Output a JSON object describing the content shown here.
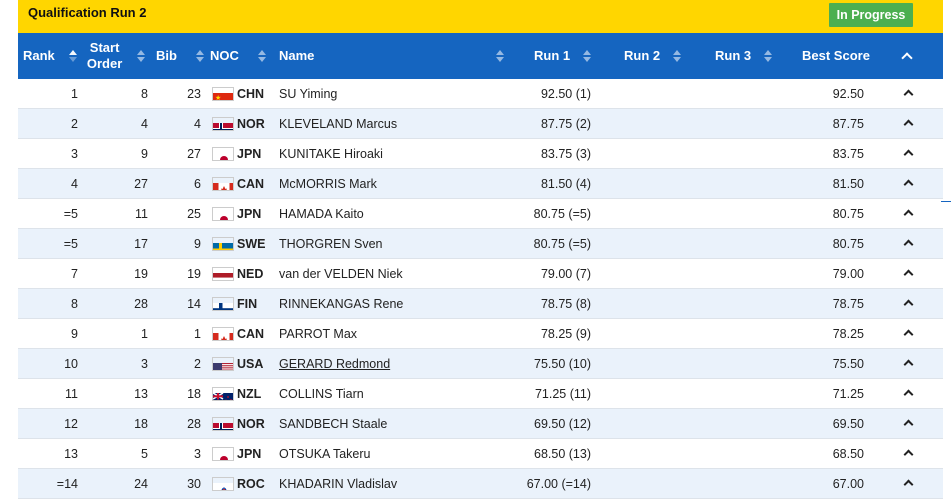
{
  "header": {
    "title": "Qualification Run 2",
    "status": "In Progress"
  },
  "columns": {
    "rank": "Rank",
    "start_order": "Start Order",
    "bib": "Bib",
    "noc": "NOC",
    "name": "Name",
    "run1": "Run 1",
    "run2": "Run 2",
    "run3": "Run 3",
    "best": "Best Score"
  },
  "colors": {
    "topbar": "#ffd600",
    "header": "#1565c0",
    "status": "#4caf50",
    "alt_row": "#eaf2fb"
  },
  "rows": [
    {
      "rank": "1",
      "start": "8",
      "bib": "23",
      "noc": "CHN",
      "flag": "chn-flag-icon",
      "name": "SU Yiming",
      "run1": "92.50 (1)",
      "run2": "",
      "run3": "",
      "best": "92.50"
    },
    {
      "rank": "2",
      "start": "4",
      "bib": "4",
      "noc": "NOR",
      "flag": "nor-flag-icon",
      "name": "KLEVELAND Marcus",
      "run1": "87.75 (2)",
      "run2": "",
      "run3": "",
      "best": "87.75"
    },
    {
      "rank": "3",
      "start": "9",
      "bib": "27",
      "noc": "JPN",
      "flag": "jpn-flag-icon",
      "name": "KUNITAKE Hiroaki",
      "run1": "83.75 (3)",
      "run2": "",
      "run3": "",
      "best": "83.75"
    },
    {
      "rank": "4",
      "start": "27",
      "bib": "6",
      "noc": "CAN",
      "flag": "can-flag-icon",
      "name": "McMORRIS Mark",
      "run1": "81.50 (4)",
      "run2": "",
      "run3": "",
      "best": "81.50"
    },
    {
      "rank": "=5",
      "start": "11",
      "bib": "25",
      "noc": "JPN",
      "flag": "jpn-flag-icon",
      "name": "HAMADA Kaito",
      "run1": "80.75 (=5)",
      "run2": "",
      "run3": "",
      "best": "80.75"
    },
    {
      "rank": "=5",
      "start": "17",
      "bib": "9",
      "noc": "SWE",
      "flag": "swe-flag-icon",
      "name": "THORGREN Sven",
      "run1": "80.75 (=5)",
      "run2": "",
      "run3": "",
      "best": "80.75"
    },
    {
      "rank": "7",
      "start": "19",
      "bib": "19",
      "noc": "NED",
      "flag": "ned-flag-icon",
      "name": "van der VELDEN Niek",
      "run1": "79.00 (7)",
      "run2": "",
      "run3": "",
      "best": "79.00"
    },
    {
      "rank": "8",
      "start": "28",
      "bib": "14",
      "noc": "FIN",
      "flag": "fin-flag-icon",
      "name": "RINNEKANGAS Rene",
      "run1": "78.75 (8)",
      "run2": "",
      "run3": "",
      "best": "78.75"
    },
    {
      "rank": "9",
      "start": "1",
      "bib": "1",
      "noc": "CAN",
      "flag": "can-flag-icon",
      "name": "PARROT Max",
      "run1": "78.25 (9)",
      "run2": "",
      "run3": "",
      "best": "78.25"
    },
    {
      "rank": "10",
      "start": "3",
      "bib": "2",
      "noc": "USA",
      "flag": "usa-flag-icon",
      "name": "GERARD Redmond",
      "run1": "75.50 (10)",
      "run2": "",
      "run3": "",
      "best": "75.50"
    },
    {
      "rank": "11",
      "start": "13",
      "bib": "18",
      "noc": "NZL",
      "flag": "nzl-flag-icon",
      "name": "COLLINS Tiarn",
      "run1": "71.25 (11)",
      "run2": "",
      "run3": "",
      "best": "71.25"
    },
    {
      "rank": "12",
      "start": "18",
      "bib": "28",
      "noc": "NOR",
      "flag": "nor-flag-icon",
      "name": "SANDBECH Staale",
      "run1": "69.50 (12)",
      "run2": "",
      "run3": "",
      "best": "69.50"
    },
    {
      "rank": "13",
      "start": "5",
      "bib": "3",
      "noc": "JPN",
      "flag": "jpn-flag-icon",
      "name": "OTSUKA Takeru",
      "run1": "68.50 (13)",
      "run2": "",
      "run3": "",
      "best": "68.50"
    },
    {
      "rank": "=14",
      "start": "24",
      "bib": "30",
      "noc": "ROC",
      "flag": "roc-flag-icon",
      "name": "KHADARIN Vladislav",
      "run1": "67.00 (=14)",
      "run2": "",
      "run3": "",
      "best": "67.00"
    }
  ]
}
